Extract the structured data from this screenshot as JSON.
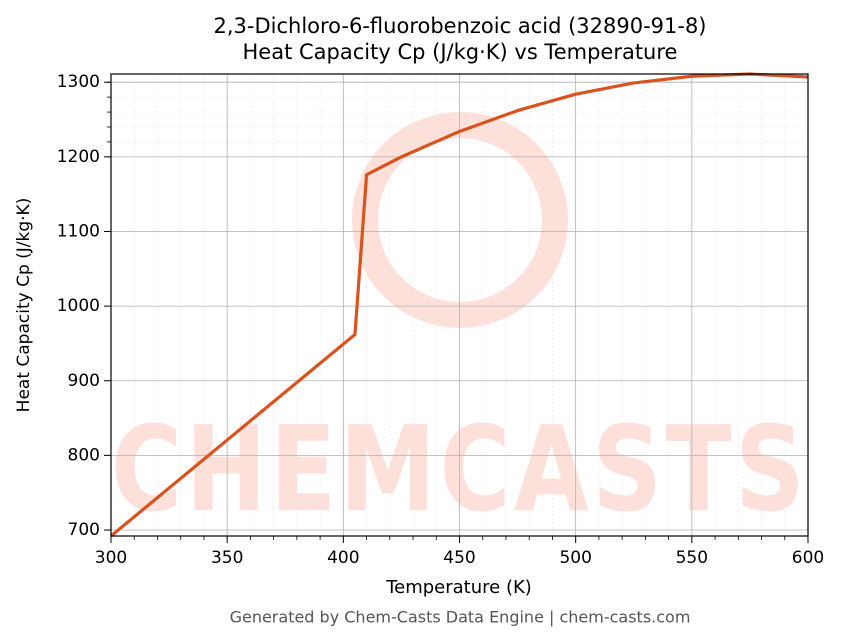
{
  "chart_data": {
    "type": "line",
    "title": "2,3-Dichloro-6-fluorobenzoic acid (32890-91-8)",
    "subtitle": "Heat Capacity Cp (J/kg·K) vs Temperature",
    "xlabel": "Temperature (K)",
    "ylabel": "Heat Capacity Cp (J/kg·K)",
    "footer": "Generated by Chem-Casts Data Engine | chem-casts.com",
    "watermark": "CHEMCASTS",
    "x": [
      300,
      405,
      410,
      425,
      450,
      475,
      500,
      525,
      550,
      575,
      600
    ],
    "series": [
      {
        "name": "Cp",
        "color": "#d9531e",
        "values": [
          692,
          962,
          1176,
          1200,
          1234,
          1262,
          1284,
          1299,
          1308,
          1311,
          1307
        ]
      }
    ],
    "xlim": [
      300,
      600
    ],
    "xticks": [
      300,
      350,
      400,
      450,
      500,
      550,
      600
    ],
    "ylim": [
      692,
      1311
    ],
    "yticks": [
      700,
      800,
      900,
      1000,
      1100,
      1200,
      1300
    ],
    "grid": true,
    "minor_grid": true
  }
}
